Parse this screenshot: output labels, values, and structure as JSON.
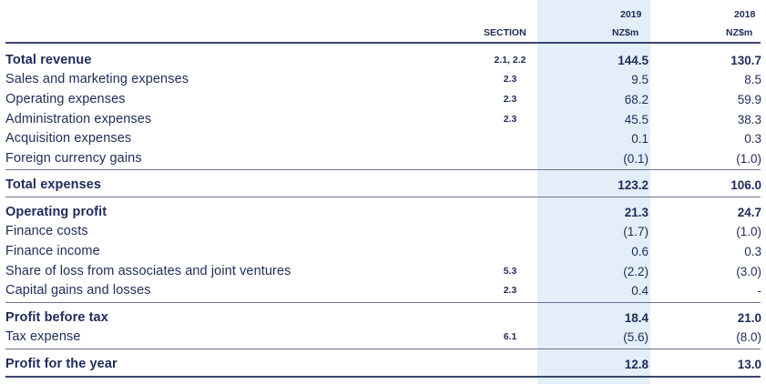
{
  "header": {
    "section_label": "SECTION",
    "year_2019": "2019",
    "year_2018": "2018",
    "unit_2019": "NZ$m",
    "unit_2018": "NZ$m"
  },
  "rows": [
    {
      "label": "Total revenue",
      "section": "2.1, 2.2",
      "v2019": "144.5",
      "v2018": "130.7"
    },
    {
      "label": "Sales and marketing expenses",
      "section": "2.3",
      "v2019": "9.5",
      "v2018": "8.5"
    },
    {
      "label": "Operating expenses",
      "section": "2.3",
      "v2019": "68.2",
      "v2018": "59.9"
    },
    {
      "label": "Administration expenses",
      "section": "2.3",
      "v2019": "45.5",
      "v2018": "38.3"
    },
    {
      "label": "Acquisition expenses",
      "section": "",
      "v2019": "0.1",
      "v2018": "0.3"
    },
    {
      "label": "Foreign currency gains",
      "section": "",
      "v2019": "(0.1)",
      "v2018": "(1.0)"
    },
    {
      "label": "Total expenses",
      "section": "",
      "v2019": "123.2",
      "v2018": "106.0"
    },
    {
      "label": "Operating profit",
      "section": "",
      "v2019": "21.3",
      "v2018": "24.7"
    },
    {
      "label": "Finance costs",
      "section": "",
      "v2019": "(1.7)",
      "v2018": "(1.0)"
    },
    {
      "label": "Finance income",
      "section": "",
      "v2019": "0.6",
      "v2018": "0.3"
    },
    {
      "label": "Share of loss from associates and joint ventures",
      "section": "5.3",
      "v2019": "(2.2)",
      "v2018": "(3.0)"
    },
    {
      "label": "Capital gains and losses",
      "section": "2.3",
      "v2019": "0.4",
      "v2018": "-"
    },
    {
      "label": "Profit before tax",
      "section": "",
      "v2019": "18.4",
      "v2018": "21.0"
    },
    {
      "label": "Tax expense",
      "section": "6.1",
      "v2019": "(5.6)",
      "v2018": "(8.0)"
    },
    {
      "label": "Profit for the year",
      "section": "",
      "v2019": "12.8",
      "v2018": "13.0"
    }
  ]
}
